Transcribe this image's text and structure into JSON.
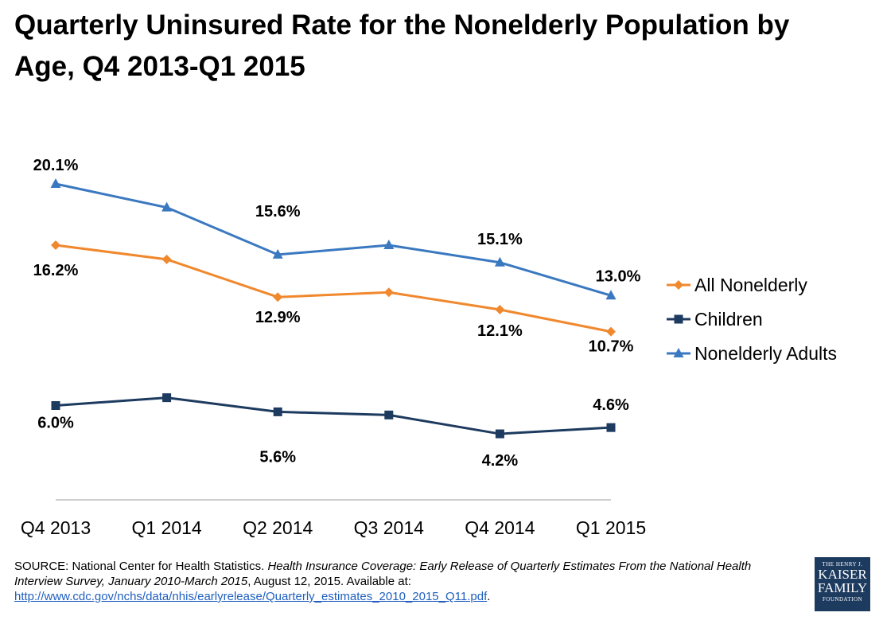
{
  "chart_data": {
    "type": "line",
    "title": "Quarterly Uninsured Rate for the Nonelderly Population by Age, Q4 2013-Q1 2015",
    "categories": [
      "Q4 2013",
      "Q1 2014",
      "Q2 2014",
      "Q3 2014",
      "Q4 2014",
      "Q1 2015"
    ],
    "series": [
      {
        "name": "All Nonelderly",
        "color": "#f0882d",
        "marker": "diamond",
        "values": [
          16.2,
          15.3,
          12.9,
          13.2,
          12.1,
          10.7
        ],
        "labels": [
          "16.2%",
          "",
          "12.9%",
          "",
          "12.1%",
          "10.7%"
        ]
      },
      {
        "name": "Children",
        "color": "#1d3a5f",
        "marker": "square",
        "values": [
          6.0,
          6.5,
          5.6,
          5.4,
          4.2,
          4.6
        ],
        "labels": [
          "6.0%",
          "",
          "5.6%",
          "",
          "4.2%",
          "4.6%"
        ]
      },
      {
        "name": "Nonelderly Adults",
        "color": "#3a78c0",
        "marker": "triangle",
        "values": [
          20.1,
          18.6,
          15.6,
          16.2,
          15.1,
          13.0
        ],
        "labels": [
          "20.1%",
          "",
          "15.6%",
          "",
          "15.1%",
          "13.0%"
        ]
      }
    ],
    "ylim": [
      0,
      23
    ],
    "grid": false,
    "legend": "right"
  },
  "source": {
    "prefix": "SOURCE: National Center for Health Statistics. ",
    "italic": "Health Insurance Coverage: Early Release of Quarterly Estimates From the National Health Interview Survey, January 2010-March 2015",
    "suffix": ", August 12, 2015. Available at:",
    "link": "http://www.cdc.gov/nchs/data/nhis/earlyrelease/Quarterly_estimates_2010_2015_Q11.pdf",
    "end": "."
  },
  "logo": {
    "line1": "THE HENRY J.",
    "line2": "KAISER",
    "line3": "FAMILY",
    "line4": "FOUNDATION"
  }
}
